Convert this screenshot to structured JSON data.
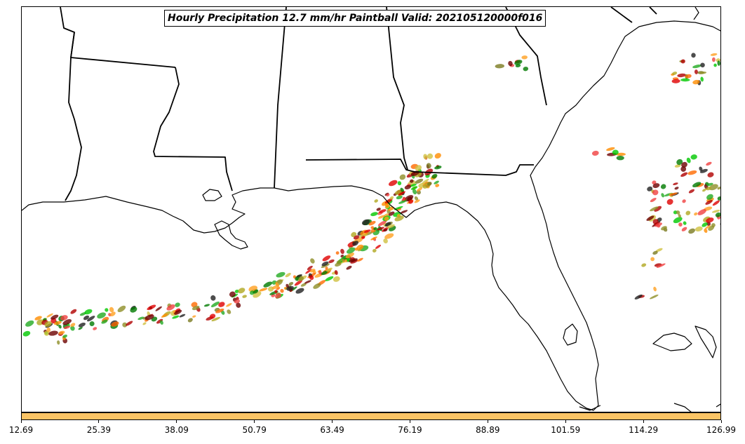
{
  "map": {
    "title": "Hourly Precipitation 12.7 mm/hr Paintball Valid: 202105120000f016",
    "region": "US Gulf Coast and Southeast",
    "colorbar": {
      "color": "#fbc465",
      "tick_labels": [
        "12.69",
        "25.39",
        "38.09",
        "50.79",
        "63.49",
        "76.19",
        "88.89",
        "101.59",
        "114.29",
        "126.99"
      ]
    },
    "member_colors": [
      "#e00000",
      "#b00000",
      "#ff6a00",
      "#ff8c00",
      "#ffa020",
      "#00c800",
      "#22aa22",
      "#007a00",
      "#7a7a20",
      "#8f8f28",
      "#b0a820",
      "#d0c040",
      "#6b0000",
      "#202020",
      "#f04040"
    ]
  }
}
